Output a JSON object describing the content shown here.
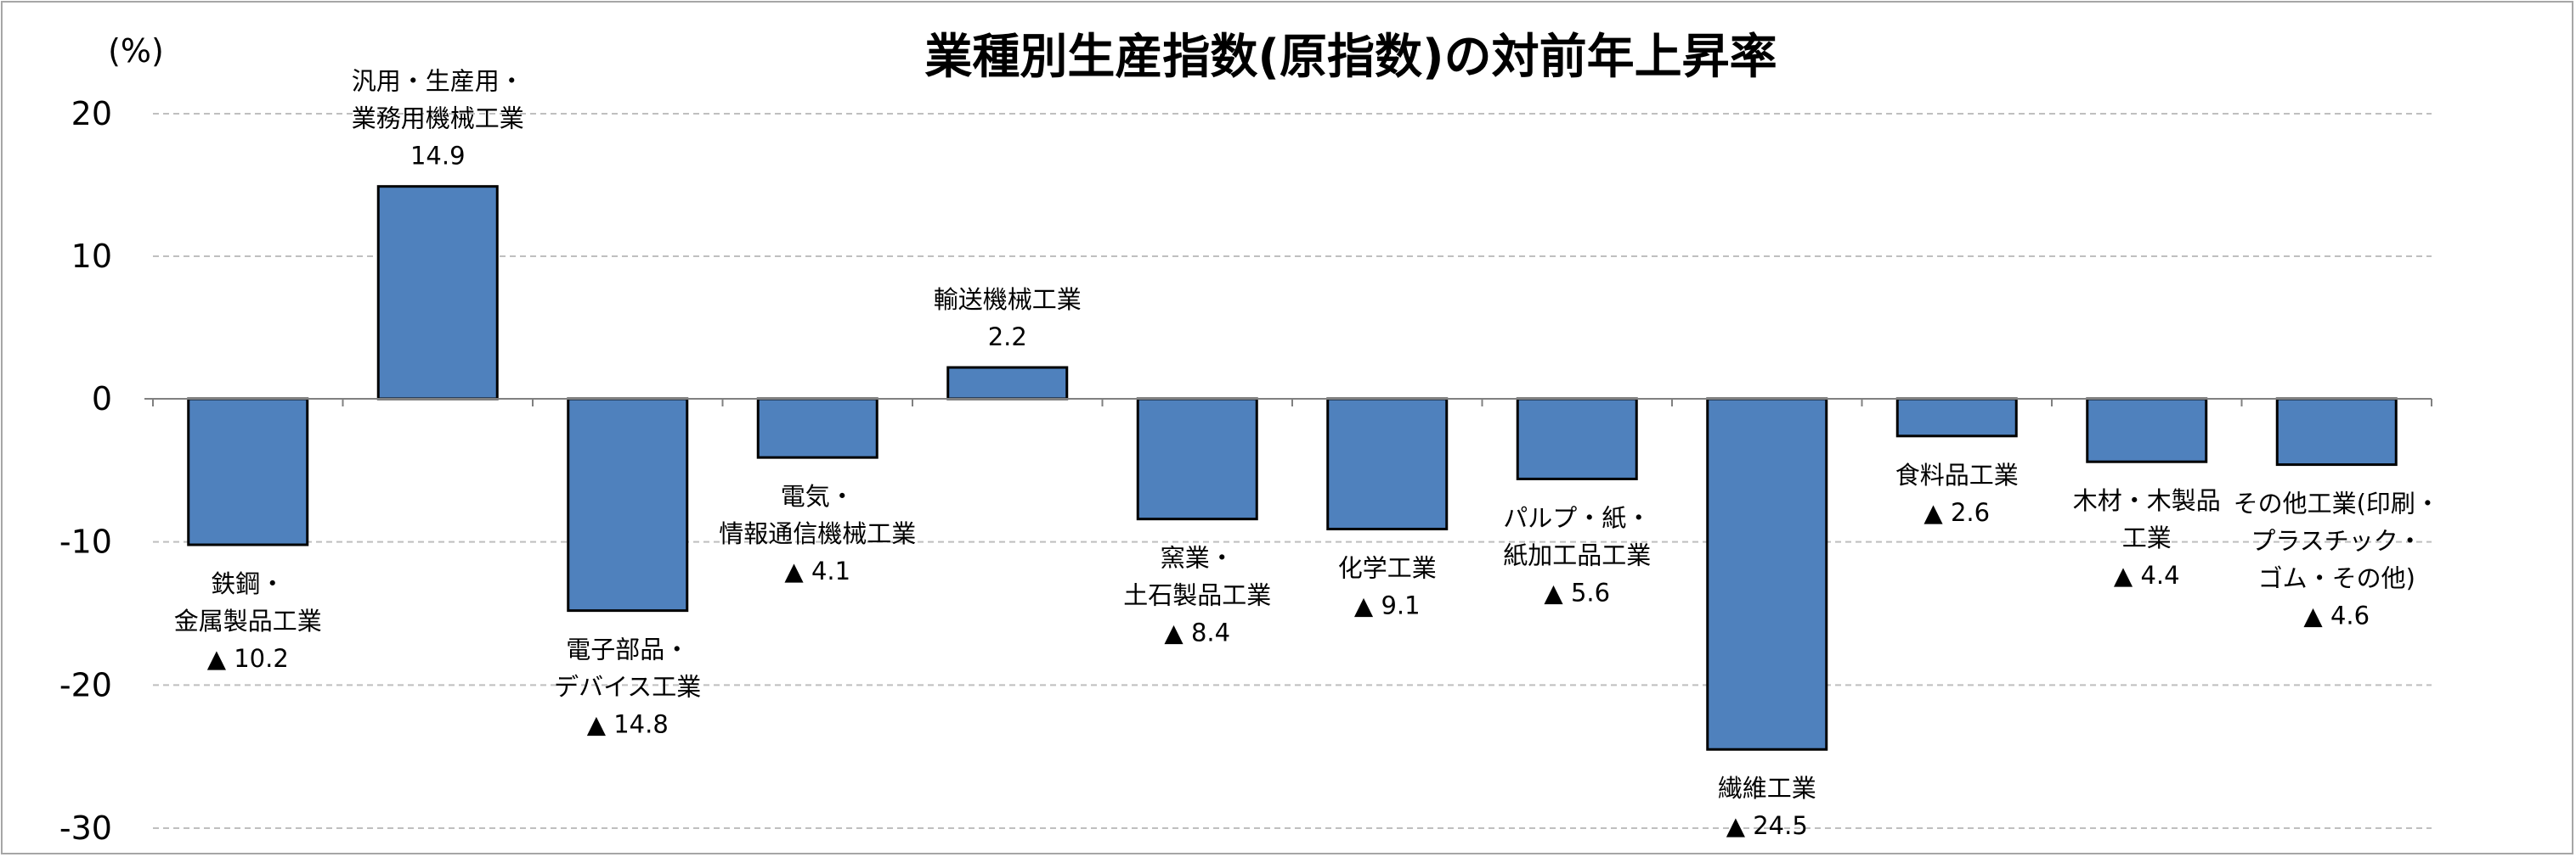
{
  "chart_data": {
    "type": "bar",
    "title": "業種別生産指数(原指数)の対前年上昇率",
    "ylabel": "(%)",
    "xlabel": "",
    "ylim": [
      -30,
      20
    ],
    "yticks": [
      "20",
      "10",
      "0",
      "-10",
      "-20",
      "-30"
    ],
    "grid": true,
    "bar_color": "#4f81bd",
    "categories": [
      "鉄鋼・金属製品工業",
      "汎用・生産用・業務用機械工業",
      "電子部品・デバイス工業",
      "電気・情報通信機械工業",
      "輸送機械工業",
      "窯業・土石製品工業",
      "化学工業",
      "パルプ・紙・紙加工品工業",
      "繊維工業",
      "食料品工業",
      "木材・木製品工業",
      "その他工業(印刷・プラスチック・ゴム・その他)"
    ],
    "values": [
      -10.2,
      14.9,
      -14.8,
      -4.1,
      2.2,
      -8.4,
      -9.1,
      -5.6,
      -24.5,
      -2.6,
      -4.4,
      -4.6
    ],
    "label_lines": [
      [
        "鉄鋼・",
        "金属製品工業"
      ],
      [
        "汎用・生産用・",
        "業務用機械工業"
      ],
      [
        "電子部品・",
        "デバイス工業"
      ],
      [
        "電気・",
        "情報通信機械工業"
      ],
      [
        "輸送機械工業"
      ],
      [
        "窯業・",
        "土石製品工業"
      ],
      [
        "化学工業"
      ],
      [
        "パルプ・紙・",
        "紙加工品工業"
      ],
      [
        "繊維工業"
      ],
      [
        "食料品工業"
      ],
      [
        "木材・木製品",
        "工業"
      ],
      [
        "その他工業(印刷・",
        "プラスチック・",
        "ゴム・その他)"
      ]
    ],
    "value_labels": [
      "▲ 10.2",
      "14.9",
      "▲ 14.8",
      "▲ 4.1",
      "2.2",
      "▲ 8.4",
      "▲ 9.1",
      "▲ 5.6",
      "▲ 24.5",
      "▲ 2.6",
      "▲ 4.4",
      "▲ 4.6"
    ]
  }
}
